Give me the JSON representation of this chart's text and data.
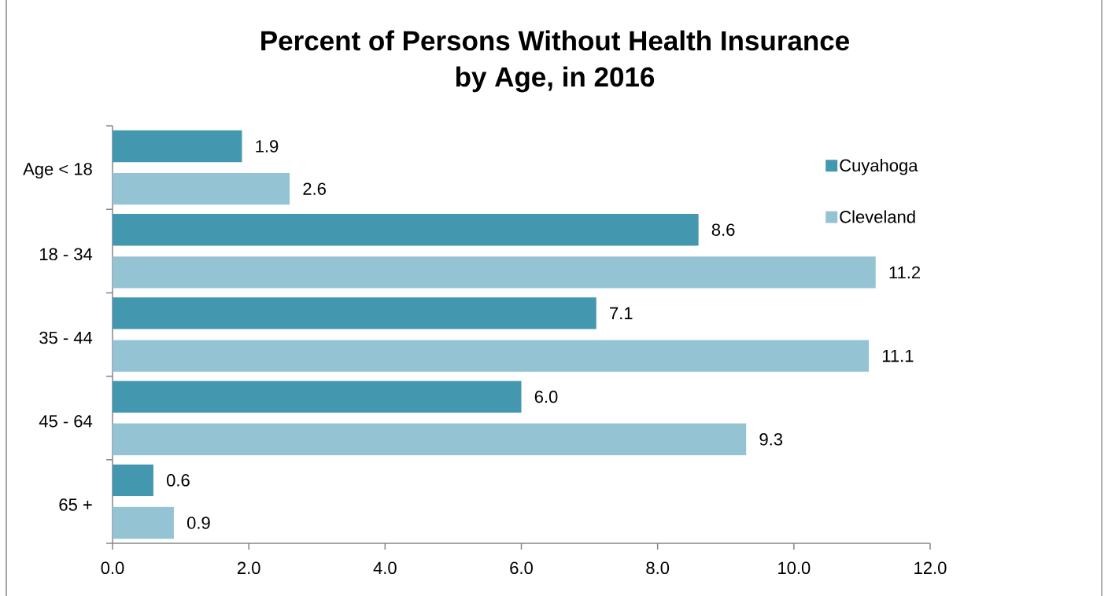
{
  "chart_data": {
    "type": "bar",
    "orientation": "horizontal",
    "title": "Percent of Persons Without Health Insurance by Age, in 2016",
    "categories": [
      "Age < 18",
      "18 - 34",
      "35 - 44",
      "45 - 64",
      "65 +"
    ],
    "series": [
      {
        "name": "Cuyahoga",
        "color": "#4398b0",
        "values": [
          1.9,
          8.6,
          7.1,
          6.0,
          0.6
        ],
        "value_labels": [
          "1.9",
          "8.6",
          "7.1",
          "6.0",
          "0.6"
        ]
      },
      {
        "name": "Cleveland",
        "color": "#94c3d4",
        "values": [
          2.6,
          11.2,
          11.1,
          9.3,
          0.9
        ],
        "value_labels": [
          "2.6",
          "11.2",
          "11.1",
          "9.3",
          "0.9"
        ]
      }
    ],
    "xlim": [
      0,
      12
    ],
    "xticks": [
      {
        "value": 0,
        "label": "0.0"
      },
      {
        "value": 2,
        "label": "2.0"
      },
      {
        "value": 4,
        "label": "4.0"
      },
      {
        "value": 6,
        "label": "6.0"
      },
      {
        "value": 8,
        "label": "8.0"
      },
      {
        "value": 10,
        "label": "10.0"
      },
      {
        "value": 12,
        "label": "12.0"
      }
    ],
    "legend": "top right"
  }
}
